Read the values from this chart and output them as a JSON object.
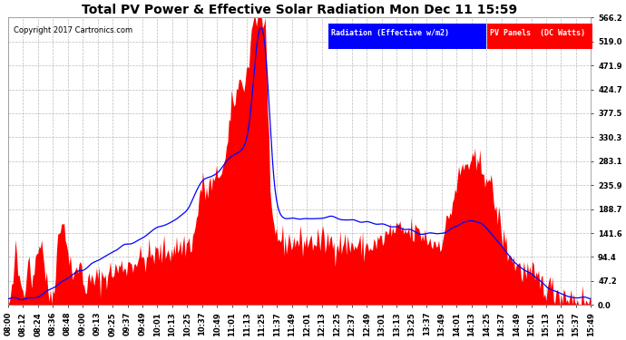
{
  "title": "Total PV Power & Effective Solar Radiation Mon Dec 11 15:59",
  "copyright": "Copyright 2017 Cartronics.com",
  "legend_blue": "Radiation (Effective w/m2)",
  "legend_red": "PV Panels  (DC Watts)",
  "ymax": 566.2,
  "ytick_vals": [
    0.0,
    47.2,
    94.4,
    141.6,
    188.7,
    235.9,
    283.1,
    330.3,
    377.5,
    424.7,
    471.9,
    519.0,
    566.2
  ],
  "bg_color": "#ffffff",
  "plot_bg": "#ffffff",
  "title_color": "#000000",
  "grid_color": "#aaaaaa",
  "blue_color": "#0000ff",
  "red_color": "#ff0000",
  "xtick_labels": [
    "08:00",
    "08:12",
    "08:24",
    "08:36",
    "08:48",
    "09:00",
    "09:13",
    "09:25",
    "09:37",
    "09:49",
    "10:01",
    "10:13",
    "10:25",
    "10:37",
    "10:49",
    "11:01",
    "11:13",
    "11:25",
    "11:37",
    "11:49",
    "12:01",
    "12:13",
    "12:25",
    "12:37",
    "12:49",
    "13:01",
    "13:13",
    "13:25",
    "13:37",
    "13:49",
    "14:01",
    "14:13",
    "14:25",
    "14:37",
    "14:49",
    "15:01",
    "15:13",
    "15:25",
    "15:37",
    "15:49"
  ],
  "title_fontsize": 10,
  "tick_fontsize": 6,
  "copyright_fontsize": 6,
  "legend_fontsize": 6
}
